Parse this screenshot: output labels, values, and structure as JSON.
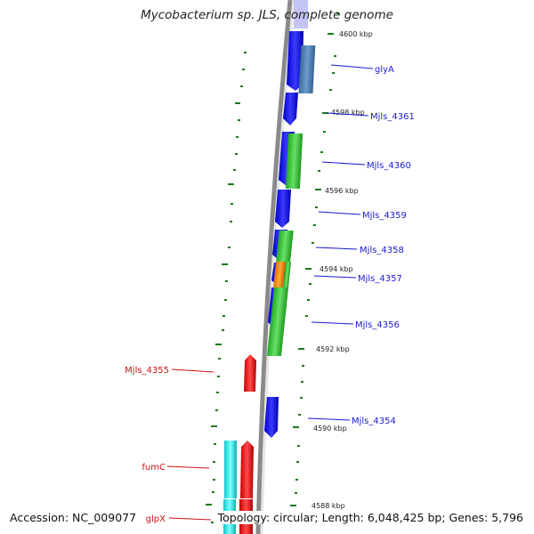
{
  "title": "Mycobacterium sp. JLS, complete genome",
  "footer": {
    "accession": "Accession: NC_009077",
    "summary": "Topology: circular; Length: 6,048,425 bp; Genes: 5,796"
  },
  "colors": {
    "forward_gene": "#1010e0",
    "forward_label": "#1a1acc",
    "reverse_gene": "#e01010",
    "reverse_label": "#cc1111",
    "green_feature": "#33cc33",
    "steelblue_feature": "#4a7fb5",
    "orange_feature": "#ff8800",
    "cyan_feature": "#22e0e0",
    "tick": "#1a7a1a",
    "backbone": "#8a8a8a"
  },
  "scale_labels": [
    "4600 kbp",
    "4598 kbp",
    "4596 kbp",
    "4594 kbp",
    "4592 kbp",
    "4590 kbp",
    "4588 kbp"
  ],
  "forward_gene_labels": [
    "glyA",
    "Mjls_4361",
    "Mjls_4360",
    "Mjls_4359",
    "Mjls_4358",
    "Mjls_4357",
    "Mjls_4356",
    "Mjls_4354"
  ],
  "reverse_gene_labels": [
    "Mjls_4355",
    "fumC",
    "glpX"
  ]
}
